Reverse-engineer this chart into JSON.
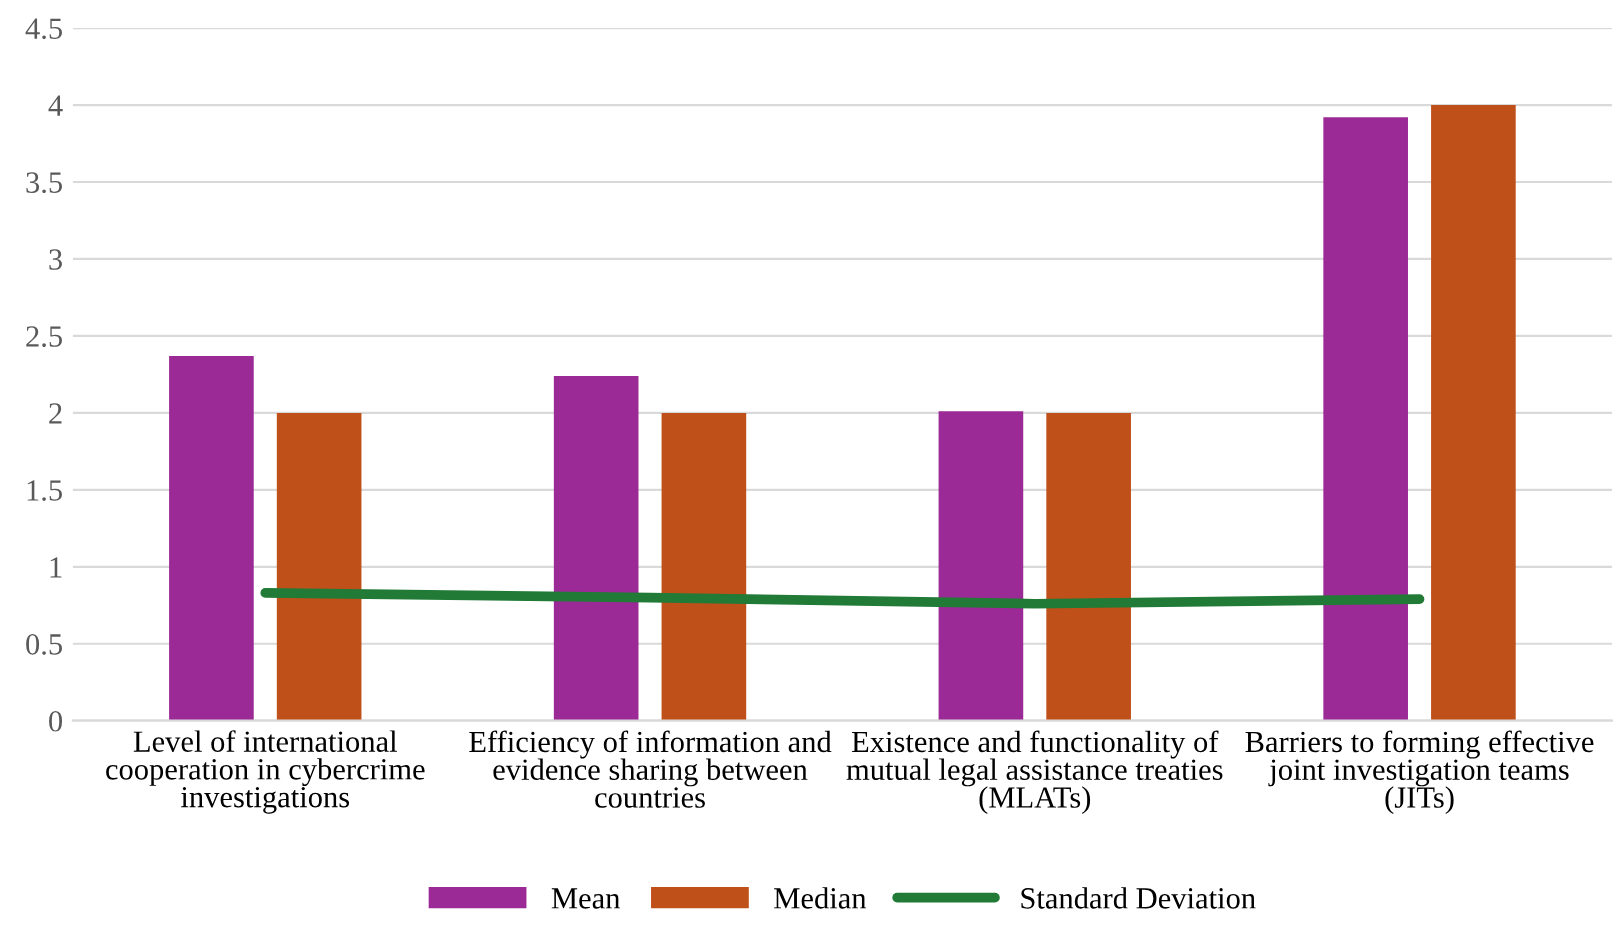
{
  "chart_data": {
    "type": "bar",
    "categories": [
      "Level of international cooperation in cybercrime investigations",
      "Efficiency of information and evidence sharing between countries",
      "Existence and functionality of mutual legal assistance treaties (MLATs)",
      "Barriers to forming effective joint investigation teams (JITs)"
    ],
    "series": [
      {
        "name": "Mean",
        "color": "#9b2a96",
        "values": [
          2.37,
          2.24,
          2.01,
          3.92
        ]
      },
      {
        "name": "Median",
        "color": "#c0501a",
        "values": [
          2,
          2,
          2,
          4
        ]
      },
      {
        "name": "Standard Deviation",
        "type": "line",
        "color": "#217a36",
        "values": [
          0.83,
          0.8,
          0.76,
          0.79
        ]
      }
    ],
    "ylim": [
      0,
      4.5
    ],
    "yticks": [
      0,
      0.5,
      1,
      1.5,
      2,
      2.5,
      3,
      3.5,
      4,
      4.5
    ],
    "grid": "y",
    "legend": "bottom",
    "marker": "none",
    "line_style": "solid"
  }
}
